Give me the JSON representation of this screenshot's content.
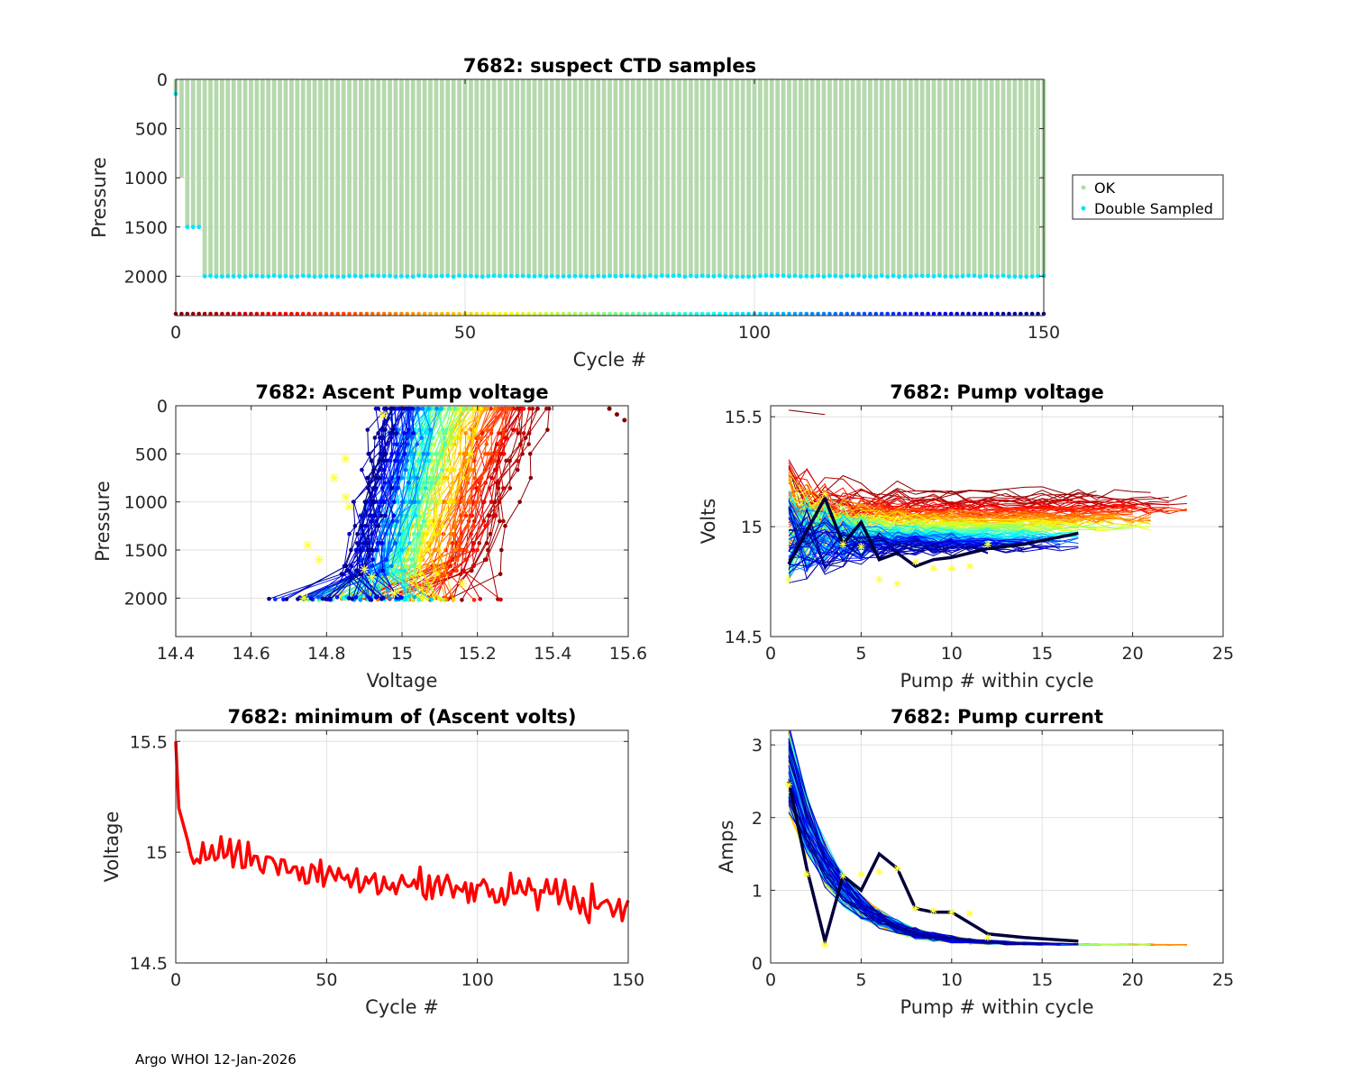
{
  "float_id": "7682",
  "footer": "Argo WHOI 12-Jan-2026",
  "colors": {
    "ok": "#b5d9ad",
    "double_sampled": "#00e5ff",
    "min_volts_line": "#ff0000",
    "marker_yellow": "#ffff33",
    "grid": "#e1e1e1"
  },
  "chart_data": [
    {
      "id": "ctd",
      "type": "bar",
      "title": "7682: suspect CTD samples",
      "xlabel": "Cycle #",
      "ylabel": "Pressure",
      "xlim": [
        0,
        150
      ],
      "ylim": [
        2400,
        0
      ],
      "xticks": [
        "0",
        "50",
        "100",
        "150"
      ],
      "yticks": [
        "0",
        "500",
        "1000",
        "1500",
        "2000"
      ],
      "legend": [
        "OK",
        "Double Sampled"
      ],
      "legend_position": "outside-right",
      "cycles": 150,
      "profile_depth": {
        "first_cycles": [
          150,
          1000,
          1500,
          1500,
          1500
        ],
        "typical": 2000
      },
      "double_sampled_depths": "near profile bottom each cycle (~2000 dbar); shallow cycles at ~150 and ~1500 dbar",
      "cycle_color_strip": "jet colormap from dark red (cycle 0) to dark blue (cycle 150) at bottom of axis"
    },
    {
      "id": "ascent",
      "type": "line",
      "title": "7682: Ascent Pump voltage",
      "xlabel": "Voltage",
      "ylabel": "Pressure",
      "xlim": [
        14.4,
        15.6
      ],
      "ylim": [
        2400,
        0
      ],
      "xticks": [
        "14.4",
        "14.6",
        "14.8",
        "15",
        "15.2",
        "15.4",
        "15.6"
      ],
      "yticks": [
        "0",
        "500",
        "1000",
        "1500",
        "2000"
      ],
      "series_note": "one profile per cycle colored by cycle (jet colormap); early cycles ~15.2-15.6 V, late cycles ~14.7-14.9 V"
    },
    {
      "id": "pumpv",
      "type": "line",
      "title": "7682: Pump voltage",
      "xlabel": "Pump # within cycle",
      "ylabel": "Volts",
      "xlim": [
        0,
        25
      ],
      "ylim": [
        14.5,
        15.55
      ],
      "xticks": [
        "0",
        "5",
        "10",
        "15",
        "20",
        "25"
      ],
      "yticks": [
        "14.5",
        "15",
        "15.5"
      ],
      "series_note": "one line per cycle; voltage converges toward ~14.9-15.1 V with pump number; max pump count ~23"
    },
    {
      "id": "minv",
      "type": "line",
      "title": "7682: minimum of (Ascent volts)",
      "xlabel": "Cycle #",
      "ylabel": "Voltage",
      "xlim": [
        0,
        150
      ],
      "ylim": [
        14.5,
        15.55
      ],
      "xticks": [
        "0",
        "50",
        "100",
        "150"
      ],
      "yticks": [
        "14.5",
        "15",
        "15.5"
      ],
      "trend": {
        "start": 15.5,
        "cycle_5": 15.0,
        "cycle_50": 14.93,
        "cycle_100": 14.82,
        "cycle_150": 14.74
      }
    },
    {
      "id": "current",
      "type": "line",
      "title": "7682: Pump current",
      "xlabel": "Pump # within cycle",
      "ylabel": "Amps",
      "xlim": [
        0,
        25
      ],
      "ylim": [
        0,
        3.2
      ],
      "xticks": [
        "0",
        "5",
        "10",
        "15",
        "20",
        "25"
      ],
      "yticks": [
        "0",
        "1",
        "2",
        "3"
      ],
      "series_note": "current decays from ~3 A at pump 1 to ~0.25 A by pump 15-23"
    }
  ]
}
